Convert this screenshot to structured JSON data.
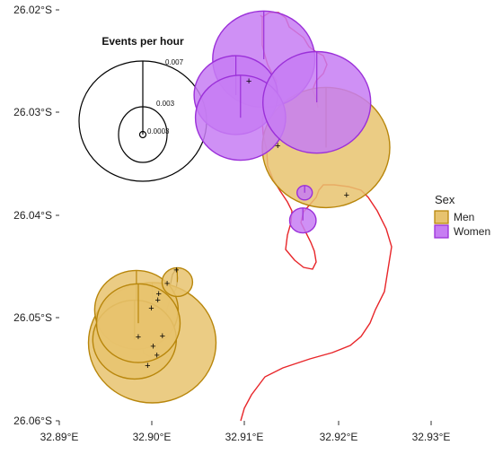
{
  "colors": {
    "men": "#E7C36F",
    "men_stroke": "#B8860B",
    "women": "#C77DF3",
    "women_stroke": "#9B30D9",
    "coast": "#E8262A",
    "island": "#5a4020"
  },
  "axes": {
    "y_ticks": [
      "26.02°S",
      "26.03°S",
      "26.04°S",
      "26.05°S",
      "26.06°S"
    ],
    "x_ticks": [
      "32.89°E",
      "32.90°E",
      "32.91°E",
      "32.92°E",
      "32.93°E"
    ]
  },
  "legend": {
    "title": "Sex",
    "items": [
      {
        "label": "Men",
        "key": "men"
      },
      {
        "label": "Women",
        "key": "women"
      }
    ]
  },
  "scale_key": {
    "title": "Events per hour",
    "labels": [
      "0.007",
      "0.003",
      "0.0003"
    ]
  },
  "chart_data": {
    "type": "scatter",
    "xlim": [
      32.89,
      32.93
    ],
    "ylim": [
      26.06,
      26.02
    ],
    "x_unit": "°E",
    "y_unit": "°S",
    "size_variable": "Events per hour",
    "size_breaks": [
      0.0003,
      0.003,
      0.007
    ],
    "series": [
      {
        "name": "Men",
        "points": [
          {
            "lon": 32.9,
            "lat": 26.0524,
            "rate": 0.007
          },
          {
            "lon": 32.8983,
            "lat": 26.0492,
            "rate": 0.003
          },
          {
            "lon": 32.8981,
            "lat": 26.0521,
            "rate": 0.003
          },
          {
            "lon": 32.8985,
            "lat": 26.0505,
            "rate": 0.003
          },
          {
            "lon": 32.9027,
            "lat": 26.0465,
            "rate": 0.0004
          },
          {
            "lon": 32.9187,
            "lat": 26.0334,
            "rate": 0.007
          }
        ]
      },
      {
        "name": "Women",
        "points": [
          {
            "lon": 32.912,
            "lat": 26.0248,
            "rate": 0.0045
          },
          {
            "lon": 32.909,
            "lat": 26.0283,
            "rate": 0.003
          },
          {
            "lon": 32.9095,
            "lat": 26.0305,
            "rate": 0.0035
          },
          {
            "lon": 32.9162,
            "lat": 26.0405,
            "rate": 0.0003
          },
          {
            "lon": 32.9164,
            "lat": 26.0378,
            "rate": 0.0001
          },
          {
            "lon": 32.9177,
            "lat": 26.029,
            "rate": 0.005
          }
        ]
      }
    ],
    "observation_points": [
      {
        "lon": 32.9104,
        "lat": 26.0269
      },
      {
        "lon": 32.9135,
        "lat": 26.0332
      },
      {
        "lon": 32.9209,
        "lat": 26.038
      },
      {
        "lon": 32.9026,
        "lat": 26.0453
      },
      {
        "lon": 32.9016,
        "lat": 26.0466
      },
      {
        "lon": 32.9007,
        "lat": 26.0476
      },
      {
        "lon": 32.9006,
        "lat": 26.0482
      },
      {
        "lon": 32.8999,
        "lat": 26.049
      },
      {
        "lon": 32.8985,
        "lat": 26.0518
      },
      {
        "lon": 32.9011,
        "lat": 26.0517
      },
      {
        "lon": 32.9001,
        "lat": 26.0527
      },
      {
        "lon": 32.9005,
        "lat": 26.0536
      },
      {
        "lon": 32.8995,
        "lat": 26.0546
      }
    ]
  }
}
